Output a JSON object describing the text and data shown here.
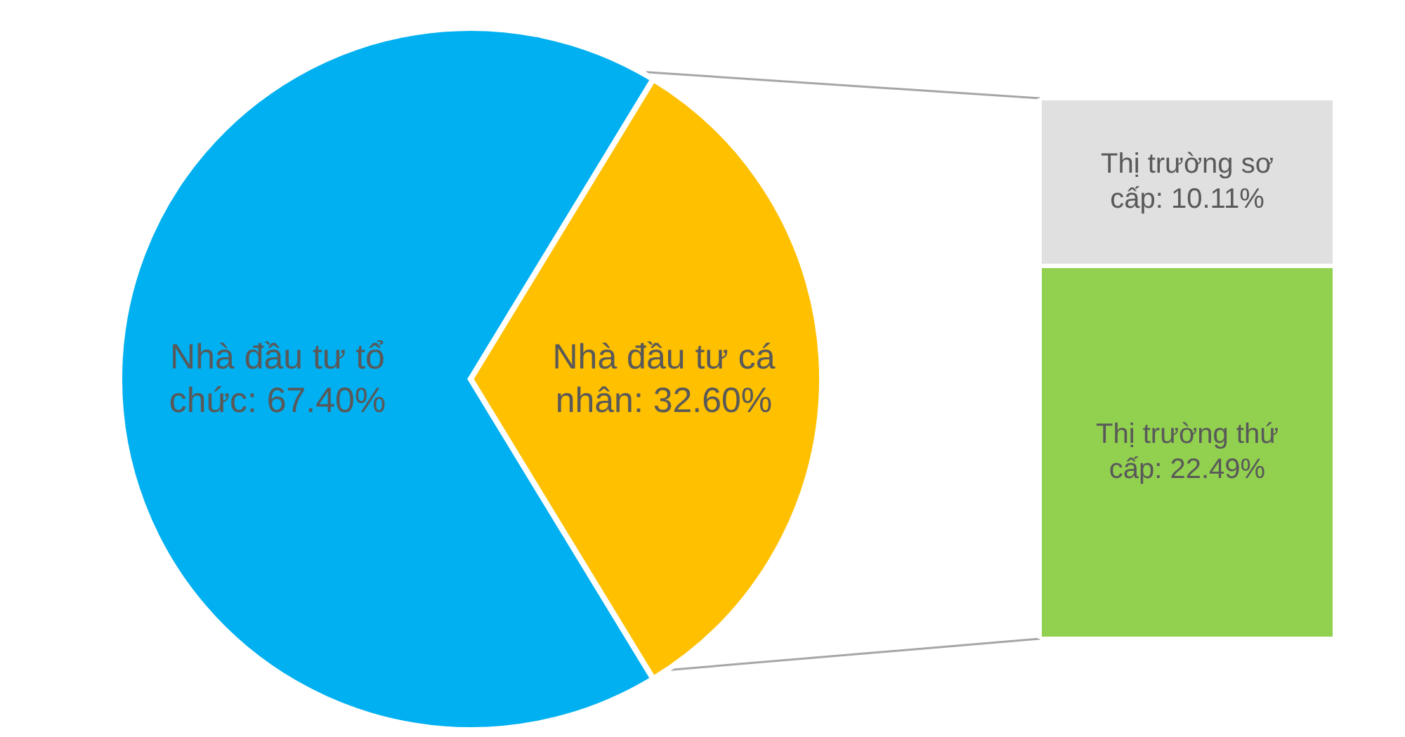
{
  "chart_data": [
    {
      "type": "pie",
      "categories": [
        "Nhà đầu tư tổ chức",
        "Nhà đầu tư cá nhân"
      ],
      "values": [
        67.4,
        32.6
      ],
      "colors": [
        "#00b0f0",
        "#ffc000"
      ],
      "value_labels": [
        "67.40%",
        "32.60%"
      ]
    },
    {
      "type": "bar",
      "stacked": true,
      "categories": [
        null
      ],
      "series": [
        {
          "color": "#92d050",
          "values": [
            22.49
          ],
          "value_labels": [
            "Thị trường thứ cấp: 22.49%"
          ]
        },
        {
          "color": "#e0e0e0",
          "values": [
            10.11
          ],
          "value_labels": [
            "Thị trường sơ cấp: 10.11%"
          ]
        }
      ]
    }
  ]
}
